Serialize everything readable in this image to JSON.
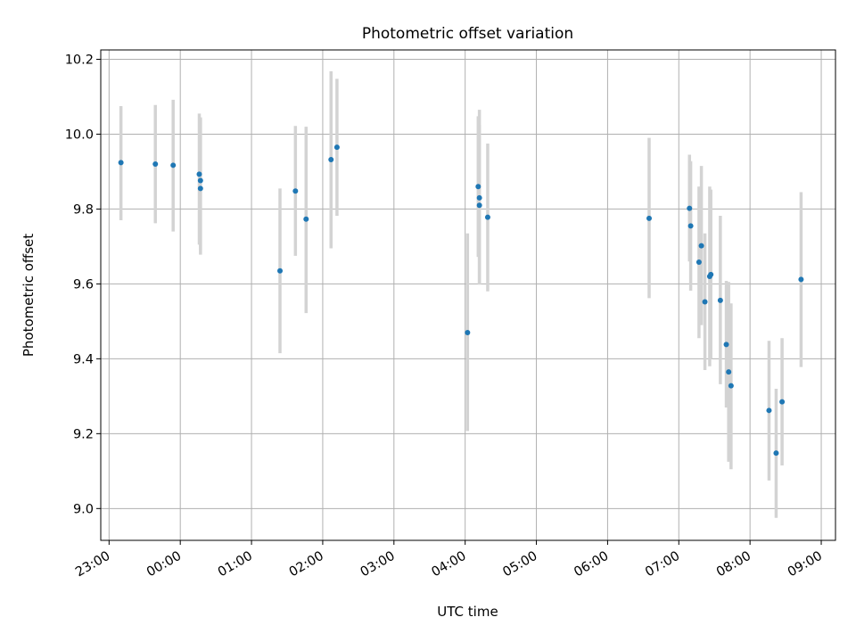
{
  "chart_data": {
    "type": "scatter",
    "title": "Photometric offset variation",
    "xlabel": "UTC time",
    "ylabel": "Photometric offset",
    "xlim": [
      "22:53",
      "09:12"
    ],
    "ylim": [
      8.915,
      10.225
    ],
    "x_ticks": [
      "23:00",
      "00:00",
      "01:00",
      "02:00",
      "03:00",
      "04:00",
      "05:00",
      "06:00",
      "07:00",
      "08:00",
      "09:00"
    ],
    "y_ticks": [
      9.0,
      9.2,
      9.4,
      9.6,
      9.8,
      10.0,
      10.2
    ],
    "grid": true,
    "marker_color": "#1f77b4",
    "errorbar_color": "#d3d3d3",
    "points": [
      {
        "x": "23:10",
        "y": 9.924,
        "ylow": 9.77,
        "yhigh": 10.075
      },
      {
        "x": "23:39",
        "y": 9.92,
        "ylow": 9.762,
        "yhigh": 10.078
      },
      {
        "x": "23:54",
        "y": 9.917,
        "ylow": 9.74,
        "yhigh": 10.092
      },
      {
        "x": "00:16",
        "y": 9.893,
        "ylow": 9.705,
        "yhigh": 10.055
      },
      {
        "x": "00:17",
        "y": 9.876,
        "ylow": 9.69,
        "yhigh": 10.045
      },
      {
        "x": "00:17",
        "y": 9.855,
        "ylow": 9.678,
        "yhigh": 10.04
      },
      {
        "x": "01:24",
        "y": 9.635,
        "ylow": 9.415,
        "yhigh": 9.855
      },
      {
        "x": "01:37",
        "y": 9.848,
        "ylow": 9.675,
        "yhigh": 10.022
      },
      {
        "x": "01:46",
        "y": 9.773,
        "ylow": 9.522,
        "yhigh": 10.02
      },
      {
        "x": "02:07",
        "y": 9.932,
        "ylow": 9.695,
        "yhigh": 10.168
      },
      {
        "x": "02:12",
        "y": 9.965,
        "ylow": 9.782,
        "yhigh": 10.148
      },
      {
        "x": "04:02",
        "y": 9.47,
        "ylow": 9.207,
        "yhigh": 9.735
      },
      {
        "x": "04:11",
        "y": 9.86,
        "ylow": 9.672,
        "yhigh": 10.048
      },
      {
        "x": "04:12",
        "y": 9.83,
        "ylow": 9.6,
        "yhigh": 10.065
      },
      {
        "x": "04:12",
        "y": 9.81,
        "ylow": 9.598,
        "yhigh": 10.025
      },
      {
        "x": "04:19",
        "y": 9.778,
        "ylow": 9.58,
        "yhigh": 9.975
      },
      {
        "x": "06:35",
        "y": 9.775,
        "ylow": 9.562,
        "yhigh": 9.99
      },
      {
        "x": "07:09",
        "y": 9.802,
        "ylow": 9.66,
        "yhigh": 9.945
      },
      {
        "x": "07:10",
        "y": 9.755,
        "ylow": 9.582,
        "yhigh": 9.928
      },
      {
        "x": "07:17",
        "y": 9.658,
        "ylow": 9.455,
        "yhigh": 9.86
      },
      {
        "x": "07:19",
        "y": 9.702,
        "ylow": 9.49,
        "yhigh": 9.915
      },
      {
        "x": "07:22",
        "y": 9.552,
        "ylow": 9.37,
        "yhigh": 9.735
      },
      {
        "x": "07:26",
        "y": 9.62,
        "ylow": 9.38,
        "yhigh": 9.86
      },
      {
        "x": "07:27",
        "y": 9.625,
        "ylow": 9.4,
        "yhigh": 9.852
      },
      {
        "x": "07:35",
        "y": 9.556,
        "ylow": 9.332,
        "yhigh": 9.782
      },
      {
        "x": "07:40",
        "y": 9.438,
        "ylow": 9.27,
        "yhigh": 9.608
      },
      {
        "x": "07:42",
        "y": 9.365,
        "ylow": 9.125,
        "yhigh": 9.605
      },
      {
        "x": "07:44",
        "y": 9.328,
        "ylow": 9.105,
        "yhigh": 9.548
      },
      {
        "x": "08:16",
        "y": 9.262,
        "ylow": 9.075,
        "yhigh": 9.448
      },
      {
        "x": "08:22",
        "y": 9.148,
        "ylow": 8.975,
        "yhigh": 9.32
      },
      {
        "x": "08:27",
        "y": 9.285,
        "ylow": 9.115,
        "yhigh": 9.455
      },
      {
        "x": "08:43",
        "y": 9.612,
        "ylow": 9.378,
        "yhigh": 9.845
      }
    ]
  }
}
